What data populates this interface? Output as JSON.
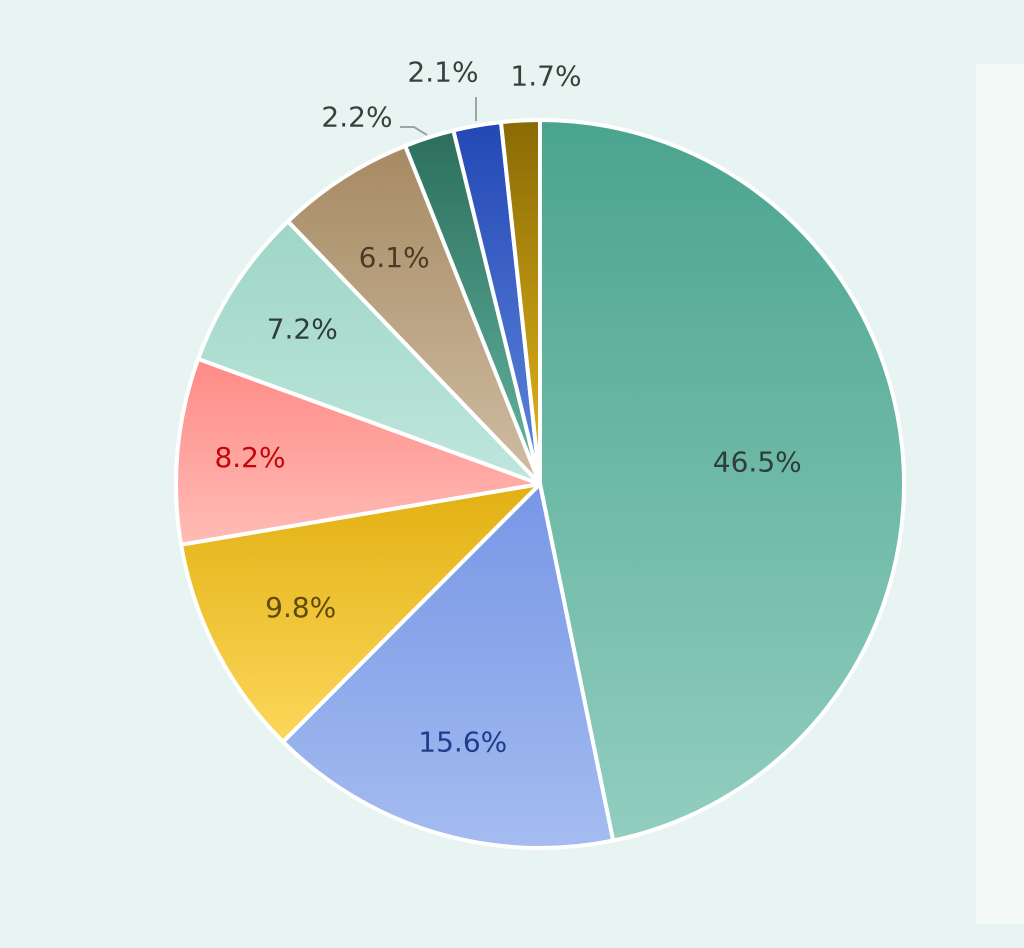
{
  "chart_data": {
    "type": "pie",
    "title": "",
    "slices": [
      {
        "label": "46.5%",
        "value": 46.5,
        "color_top": "#4aa48e",
        "color_bottom": "#92cebf",
        "label_color": "#2e3f3a"
      },
      {
        "label": "15.6%",
        "value": 15.6,
        "color_top": "#7796e6",
        "color_bottom": "#a4bcf0",
        "label_color": "#1e3d8f"
      },
      {
        "label": "9.8%",
        "value": 9.8,
        "color_top": "#e2b012",
        "color_bottom": "#fcd75a",
        "label_color": "#5f4a0a"
      },
      {
        "label": "8.2%",
        "value": 8.2,
        "color_top": "#ff8a86",
        "color_bottom": "#ffbcb6",
        "label_color": "#c4060b"
      },
      {
        "label": "7.2%",
        "value": 7.2,
        "color_top": "#9ed6c6",
        "color_bottom": "#bfe6dc",
        "label_color": "#2e3f3a"
      },
      {
        "label": "6.1%",
        "value": 6.1,
        "color_top": "#a68a63",
        "color_bottom": "#cfbda3",
        "label_color": "#4a3b26"
      },
      {
        "label": "2.2%",
        "value": 2.2,
        "color_top": "#2c6e5c",
        "color_bottom": "#63b6a1",
        "label_color": "#3a3f3e"
      },
      {
        "label": "2.1%",
        "value": 2.1,
        "color_top": "#2348b5",
        "color_bottom": "#5f86dd",
        "label_color": "#3a3f3e"
      },
      {
        "label": "1.7%",
        "value": 1.7,
        "color_top": "#8a6a05",
        "color_bottom": "#e4b81c",
        "label_color": "#3a3f3e"
      }
    ]
  }
}
